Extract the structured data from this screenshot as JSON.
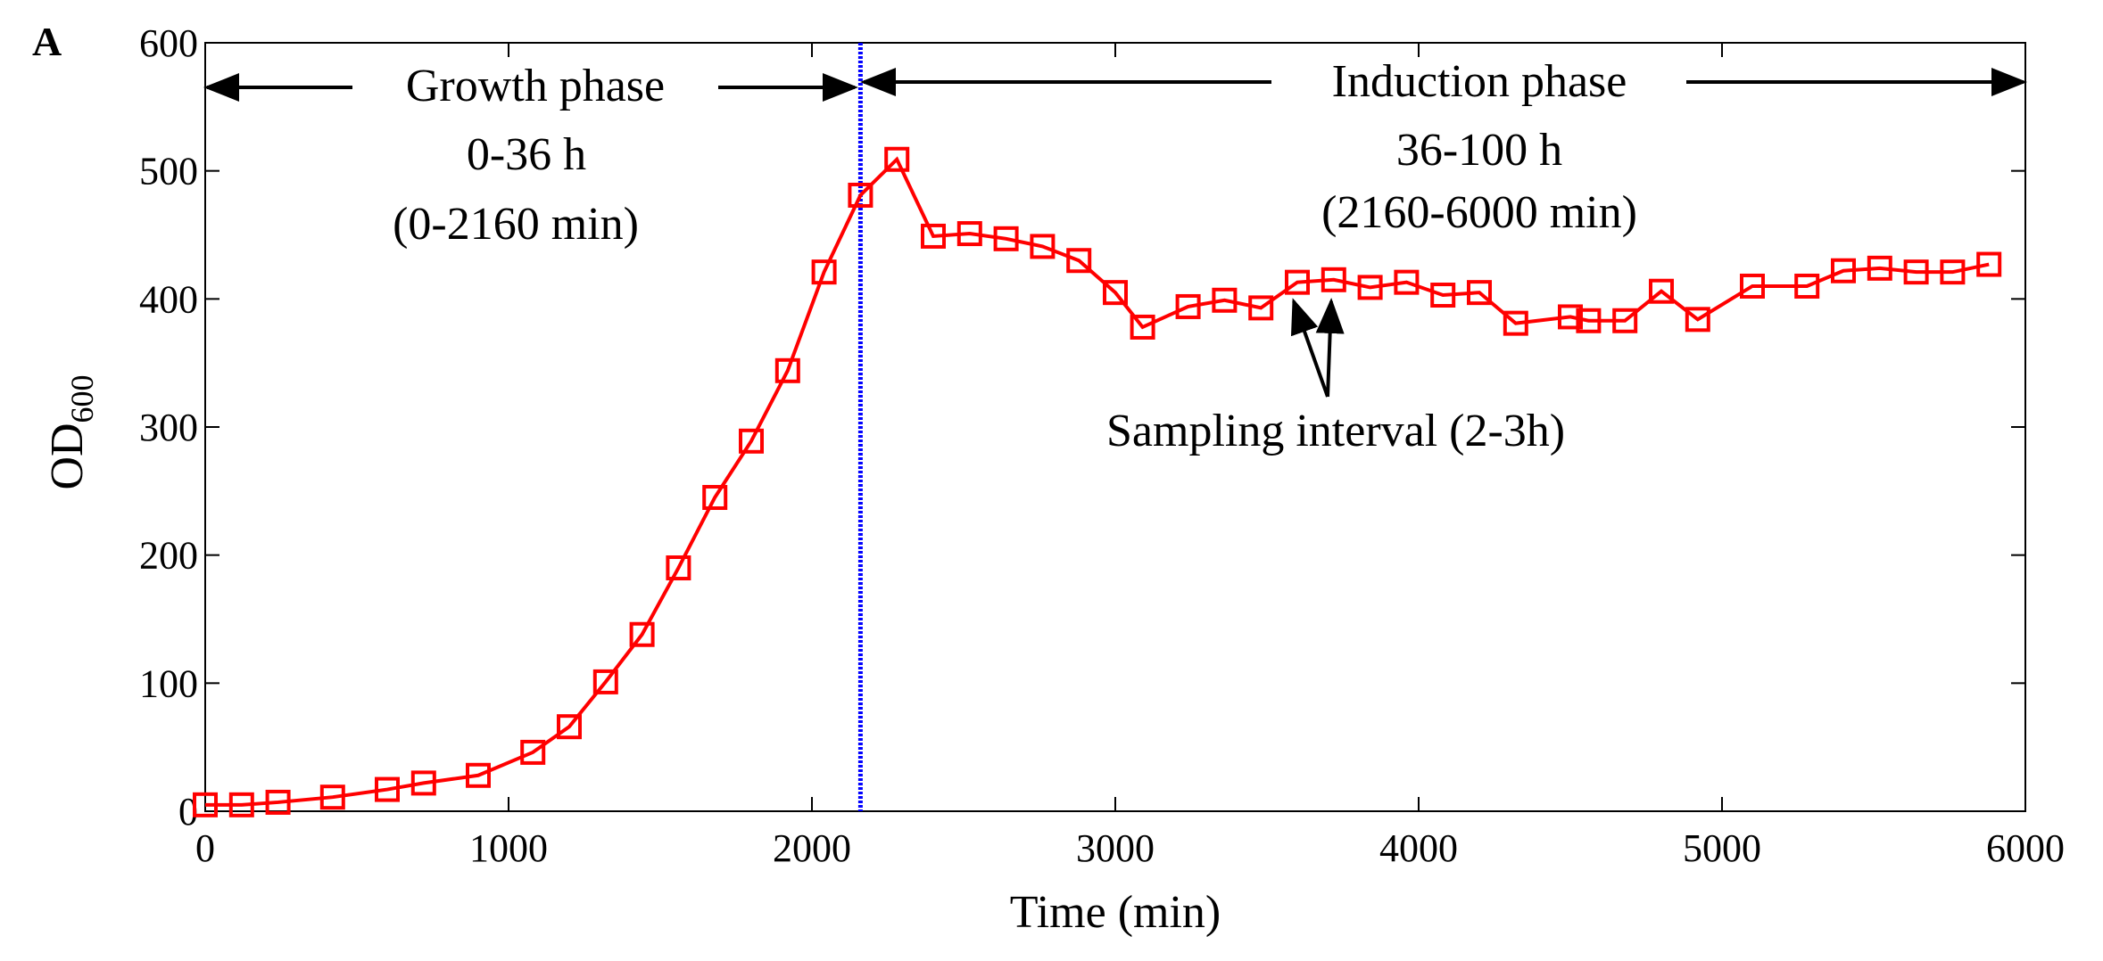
{
  "chart_data": {
    "type": "line",
    "panel_label": "A",
    "xlabel": "Time (min)",
    "ylabel_main": "OD",
    "ylabel_sub": "600",
    "xlim": [
      0,
      6000
    ],
    "ylim": [
      0,
      600
    ],
    "xticks": [
      0,
      1000,
      2000,
      3000,
      4000,
      5000,
      6000
    ],
    "yticks": [
      0,
      100,
      200,
      300,
      400,
      500,
      600
    ],
    "grid": false,
    "series": [
      {
        "color": "#ff0000",
        "marker": "square",
        "x": [
          0,
          120,
          240,
          420,
          600,
          720,
          900,
          1080,
          1200,
          1320,
          1440,
          1560,
          1680,
          1800,
          1920,
          2040,
          2160,
          2280,
          2400,
          2520,
          2640,
          2760,
          2880,
          3000,
          3090,
          3240,
          3360,
          3480,
          3600,
          3720,
          3840,
          3960,
          4080,
          4200,
          4320,
          4500,
          4560,
          4680,
          4800,
          4920,
          5100,
          5280,
          5400,
          5520,
          5640,
          5760,
          5880
        ],
        "y": [
          5,
          5,
          7,
          11,
          17,
          22,
          28,
          46,
          66,
          101,
          138,
          190,
          245,
          289,
          344,
          421,
          481,
          509,
          449,
          451,
          447,
          441,
          430,
          405,
          378,
          394,
          399,
          393,
          413,
          415,
          409,
          413,
          403,
          405,
          381,
          386,
          383,
          383,
          406,
          384,
          410,
          410,
          422,
          424,
          421,
          421,
          427
        ]
      }
    ],
    "phase_divider": {
      "x": 2160,
      "color": "#0000ff"
    },
    "annotations": {
      "growth_label": "Growth phase",
      "growth_hours": "0-36 h",
      "growth_minutes": "(0-2160 min)",
      "induction_label": "Induction phase",
      "induction_hours": "36-100 h",
      "induction_minutes": "(2160-6000 min)",
      "sampling_label": "Sampling interval (2-3h)"
    }
  }
}
